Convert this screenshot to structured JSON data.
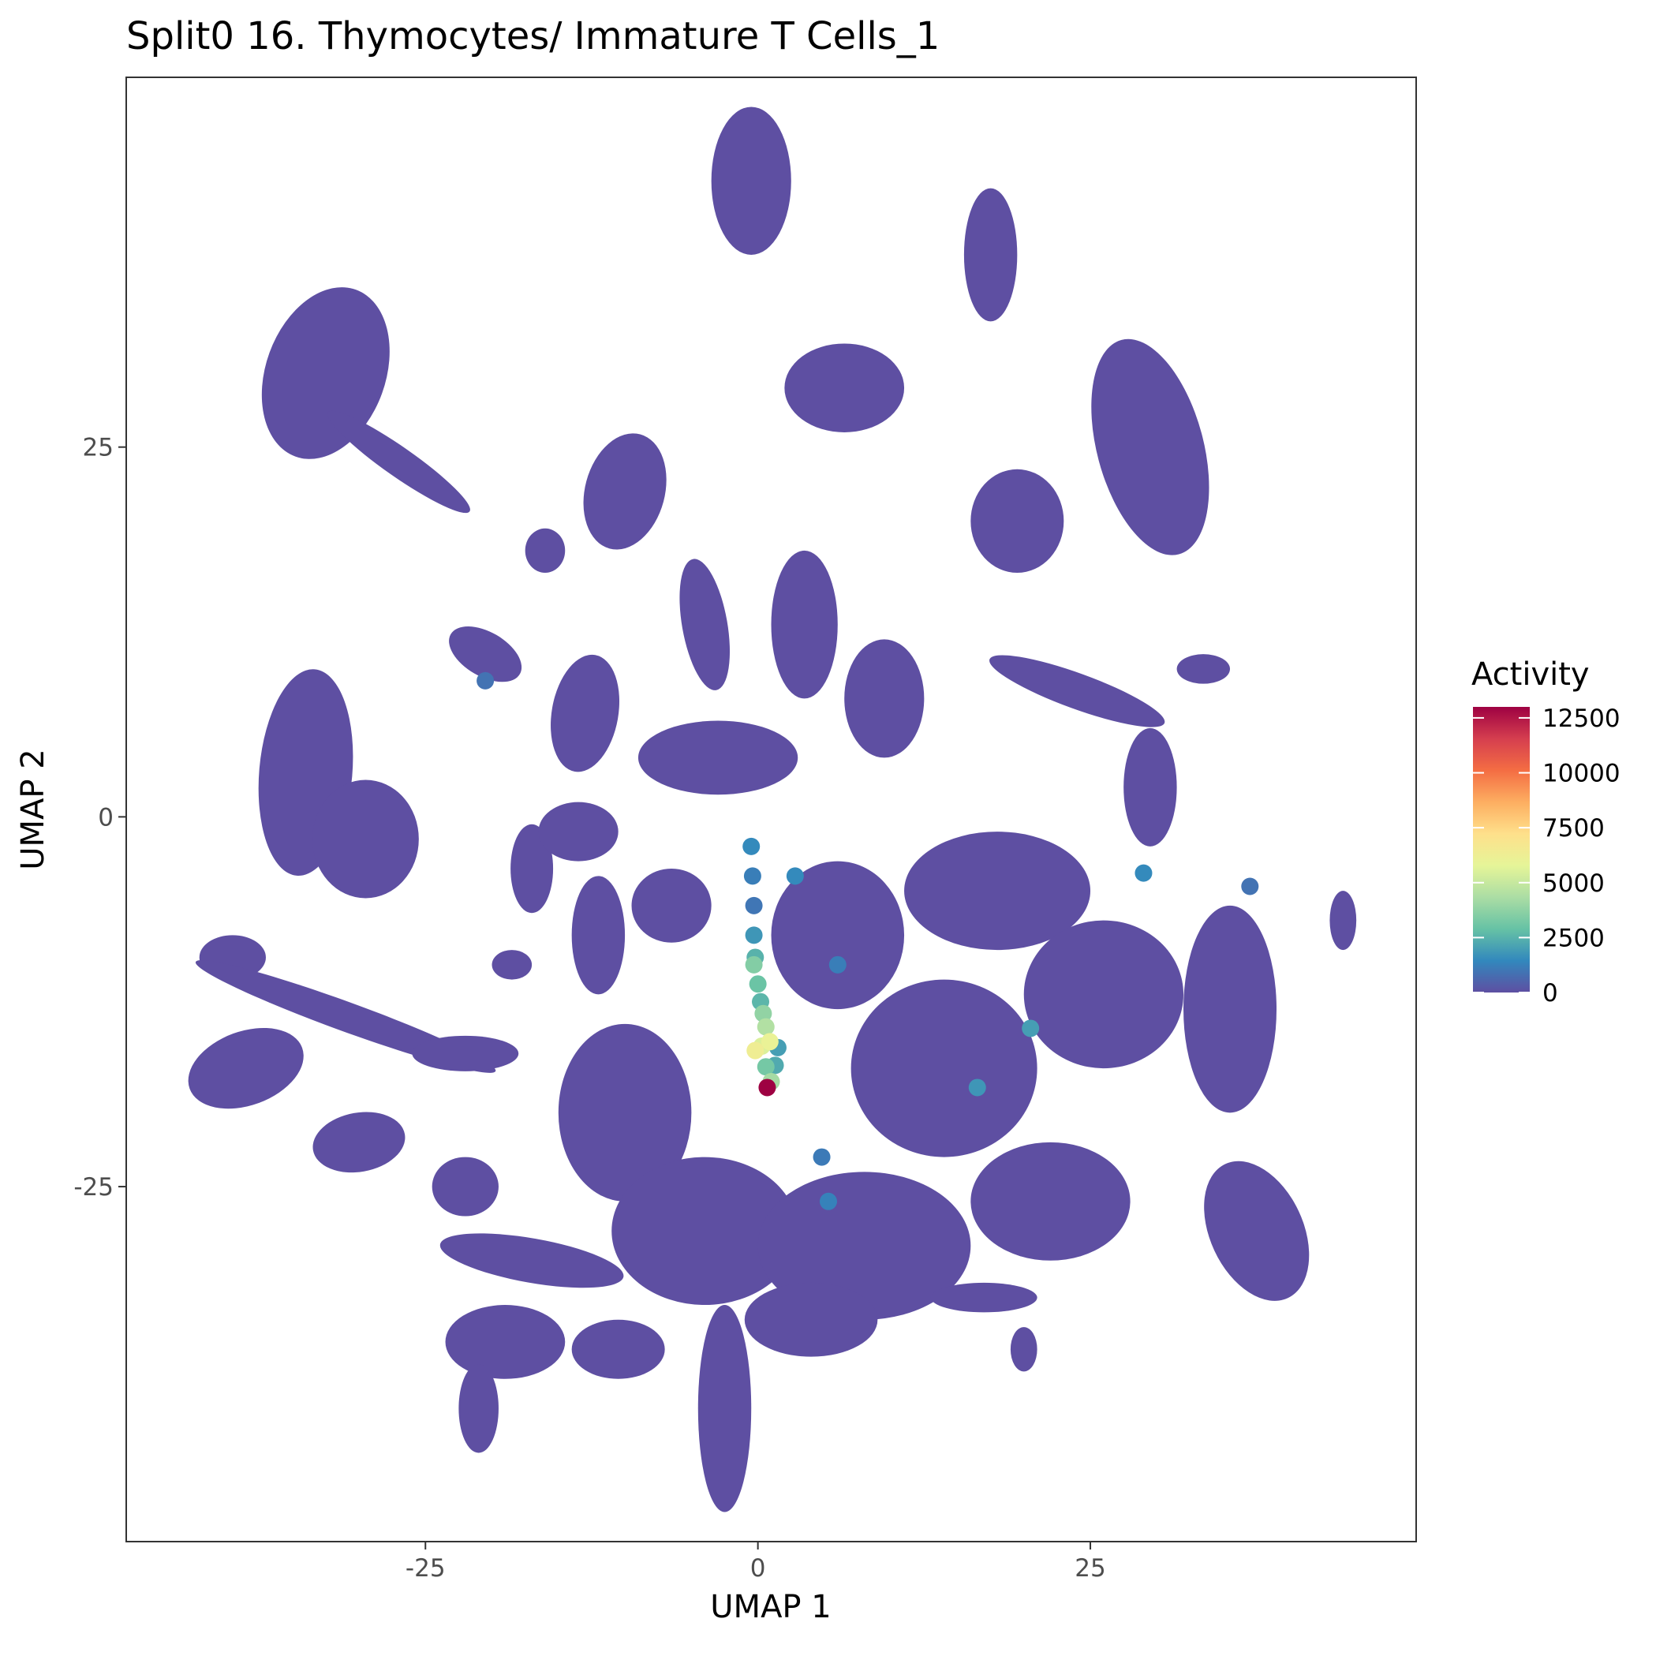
{
  "chart_data": {
    "type": "scatter",
    "title": "Split0 16. Thymocytes/ Immature T Cells_1",
    "xlabel": "UMAP 1",
    "ylabel": "UMAP 2",
    "xlim": [
      -47.5,
      49.5
    ],
    "ylim": [
      -49,
      50
    ],
    "x_ticks": [
      -25,
      0,
      25
    ],
    "x_tick_labels": [
      "-25",
      "0",
      "25"
    ],
    "y_ticks": [
      -25,
      0,
      25
    ],
    "y_tick_labels": [
      "-25",
      "0",
      "25"
    ],
    "grid": false,
    "legend": {
      "title": "Activity",
      "placement": "right",
      "range": [
        0,
        13000
      ],
      "ticks": [
        0,
        2500,
        5000,
        7500,
        10000,
        12500
      ],
      "tick_labels": [
        "0",
        "2500",
        "5000",
        "7500",
        "10000",
        "12500"
      ],
      "colormap": "Spectral (reversed)",
      "colors": [
        "#5E4FA2",
        "#3288BD",
        "#66C2A5",
        "#ABDDA4",
        "#E6F598",
        "#FEE08B",
        "#FDAE61",
        "#F46D43",
        "#D53E4F",
        "#9E0142"
      ]
    },
    "base_color": "#5E4FA2",
    "clusters": [
      {
        "cx": -32.5,
        "cy": 30,
        "rx": 4.5,
        "ry": 6,
        "angle": -20,
        "value": 0
      },
      {
        "cx": -27,
        "cy": 24,
        "rx": 6.5,
        "ry": 1,
        "angle": -35,
        "value": 0
      },
      {
        "cx": -0.5,
        "cy": 43,
        "rx": 3,
        "ry": 5,
        "angle": 0,
        "value": 0
      },
      {
        "cx": 17.5,
        "cy": 38,
        "rx": 2,
        "ry": 4.5,
        "angle": 0,
        "value": 0
      },
      {
        "cx": 6.5,
        "cy": 29,
        "rx": 4.5,
        "ry": 3,
        "angle": 0,
        "value": 0
      },
      {
        "cx": 29.5,
        "cy": 25,
        "rx": 4,
        "ry": 7.5,
        "angle": 15,
        "value": 0
      },
      {
        "cx": -10,
        "cy": 22,
        "rx": 3,
        "ry": 4,
        "angle": -15,
        "value": 0
      },
      {
        "cx": 19.5,
        "cy": 20,
        "rx": 3.5,
        "ry": 3.5,
        "angle": 0,
        "value": 0
      },
      {
        "cx": -16,
        "cy": 18,
        "rx": 1.5,
        "ry": 1.5,
        "angle": 0,
        "value": 0
      },
      {
        "cx": -20.5,
        "cy": 11,
        "rx": 3,
        "ry": 1.5,
        "angle": -30,
        "value": 0
      },
      {
        "cx": -13,
        "cy": 7,
        "rx": 2.5,
        "ry": 4,
        "angle": -10,
        "value": 0
      },
      {
        "cx": -4,
        "cy": 13,
        "rx": 1.7,
        "ry": 4.5,
        "angle": 10,
        "value": 0
      },
      {
        "cx": -34,
        "cy": 3,
        "rx": 3.5,
        "ry": 7,
        "angle": -5,
        "value": 0
      },
      {
        "cx": -29.5,
        "cy": -1.5,
        "rx": 4,
        "ry": 4,
        "angle": 0,
        "value": 0
      },
      {
        "cx": -39.5,
        "cy": -9.5,
        "rx": 2.5,
        "ry": 1.5,
        "angle": 0,
        "value": 0
      },
      {
        "cx": -31,
        "cy": -13.5,
        "rx": 12,
        "ry": 1,
        "angle": -20,
        "value": 0
      },
      {
        "cx": -38.5,
        "cy": -17,
        "rx": 4.5,
        "ry": 2.5,
        "angle": 20,
        "value": 0
      },
      {
        "cx": -22,
        "cy": -16,
        "rx": 4,
        "ry": 1.2,
        "angle": 0,
        "value": 0
      },
      {
        "cx": -30,
        "cy": -22,
        "rx": 3.5,
        "ry": 2,
        "angle": 10,
        "value": 0
      },
      {
        "cx": -17,
        "cy": -3.5,
        "rx": 1.6,
        "ry": 3,
        "angle": 0,
        "value": 0
      },
      {
        "cx": -18.5,
        "cy": -10,
        "rx": 1.5,
        "ry": 1,
        "angle": 0,
        "value": 0
      },
      {
        "cx": -13.5,
        "cy": -1,
        "rx": 3,
        "ry": 2,
        "angle": 0,
        "value": 0
      },
      {
        "cx": -3,
        "cy": 4,
        "rx": 6,
        "ry": 2.5,
        "angle": 0,
        "value": 0
      },
      {
        "cx": 9.5,
        "cy": 8,
        "rx": 3,
        "ry": 4,
        "angle": 0,
        "value": 0
      },
      {
        "cx": 3.5,
        "cy": 13,
        "rx": 2.5,
        "ry": 5,
        "angle": 0,
        "value": 0
      },
      {
        "cx": 24,
        "cy": 8.5,
        "rx": 7,
        "ry": 1.2,
        "angle": -20,
        "value": 0
      },
      {
        "cx": 33.5,
        "cy": 10,
        "rx": 2,
        "ry": 1,
        "angle": 0,
        "value": 0
      },
      {
        "cx": 29.5,
        "cy": 2,
        "rx": 2,
        "ry": 4,
        "angle": 0,
        "value": 0
      },
      {
        "cx": 44,
        "cy": -7,
        "rx": 1,
        "ry": 2,
        "angle": 0,
        "value": 0
      },
      {
        "cx": -6.5,
        "cy": -6,
        "rx": 3,
        "ry": 2.5,
        "angle": 0,
        "value": 0
      },
      {
        "cx": -12,
        "cy": -8,
        "rx": 2,
        "ry": 4,
        "angle": 0,
        "value": 0
      },
      {
        "cx": 6,
        "cy": -8,
        "rx": 5,
        "ry": 5,
        "angle": 0,
        "value": 0
      },
      {
        "cx": 18,
        "cy": -5,
        "rx": 7,
        "ry": 4,
        "angle": 0,
        "value": 0
      },
      {
        "cx": 35.5,
        "cy": -13,
        "rx": 3.5,
        "ry": 7,
        "angle": 0,
        "value": 0
      },
      {
        "cx": 26,
        "cy": -12,
        "rx": 6,
        "ry": 5,
        "angle": 0,
        "value": 0
      },
      {
        "cx": 14,
        "cy": -17,
        "rx": 7,
        "ry": 6,
        "angle": 0,
        "value": 0
      },
      {
        "cx": -10,
        "cy": -20,
        "rx": 5,
        "ry": 6,
        "angle": 0,
        "value": 0
      },
      {
        "cx": -4,
        "cy": -28,
        "rx": 7,
        "ry": 5,
        "angle": 0,
        "value": 0
      },
      {
        "cx": 8,
        "cy": -29,
        "rx": 8,
        "ry": 5,
        "angle": 0,
        "value": 0
      },
      {
        "cx": 22,
        "cy": -26,
        "rx": 6,
        "ry": 4,
        "angle": 0,
        "value": 0
      },
      {
        "cx": 37.5,
        "cy": -28,
        "rx": 3.5,
        "ry": 5,
        "angle": 25,
        "value": 0
      },
      {
        "cx": -22,
        "cy": -25,
        "rx": 2.5,
        "ry": 2,
        "angle": 0,
        "value": 0
      },
      {
        "cx": -17,
        "cy": -30,
        "rx": 7,
        "ry": 1.5,
        "angle": -10,
        "value": 0
      },
      {
        "cx": -19,
        "cy": -35.5,
        "rx": 4.5,
        "ry": 2.5,
        "angle": 0,
        "value": 0
      },
      {
        "cx": -10.5,
        "cy": -36,
        "rx": 3.5,
        "ry": 2,
        "angle": 0,
        "value": 0
      },
      {
        "cx": -2.5,
        "cy": -40,
        "rx": 2,
        "ry": 7,
        "angle": 0,
        "value": 0
      },
      {
        "cx": 4,
        "cy": -34,
        "rx": 5,
        "ry": 2.5,
        "angle": 0,
        "value": 0
      },
      {
        "cx": 20,
        "cy": -36,
        "rx": 1,
        "ry": 1.5,
        "angle": 0,
        "value": 0
      },
      {
        "cx": 17,
        "cy": -32.5,
        "rx": 4,
        "ry": 1,
        "angle": 0,
        "value": 0
      },
      {
        "cx": -21,
        "cy": -40,
        "rx": 1.5,
        "ry": 3,
        "angle": 0,
        "value": 0
      }
    ],
    "highlight_points": [
      {
        "x": -0.5,
        "y": -2,
        "value": 1500
      },
      {
        "x": -0.4,
        "y": -4,
        "value": 1200
      },
      {
        "x": -0.3,
        "y": -6,
        "value": 1000
      },
      {
        "x": -0.3,
        "y": -8,
        "value": 1800
      },
      {
        "x": -0.2,
        "y": -9.5,
        "value": 2500
      },
      {
        "x": -0.3,
        "y": -10,
        "value": 3500
      },
      {
        "x": 0,
        "y": -11.3,
        "value": 3000
      },
      {
        "x": 0.2,
        "y": -12.5,
        "value": 2600
      },
      {
        "x": 0.4,
        "y": -13.3,
        "value": 3800
      },
      {
        "x": 0.6,
        "y": -14.2,
        "value": 4500
      },
      {
        "x": -0.2,
        "y": -15.8,
        "value": 6300
      },
      {
        "x": 0.3,
        "y": -15.5,
        "value": 5500
      },
      {
        "x": 0.9,
        "y": -15.2,
        "value": 6000
      },
      {
        "x": 1.5,
        "y": -15.6,
        "value": 2000
      },
      {
        "x": 1.3,
        "y": -16.8,
        "value": 2300
      },
      {
        "x": 0.6,
        "y": -16.9,
        "value": 3200
      },
      {
        "x": 1.0,
        "y": -17.9,
        "value": 4200
      },
      {
        "x": 0.7,
        "y": -18.3,
        "value": 13000
      },
      {
        "x": 2.8,
        "y": -4,
        "value": 1500
      },
      {
        "x": 6,
        "y": -10,
        "value": 1200
      },
      {
        "x": 20.5,
        "y": -14.3,
        "value": 2000
      },
      {
        "x": 16.5,
        "y": -18.3,
        "value": 1800
      },
      {
        "x": 29,
        "y": -3.8,
        "value": 1500
      },
      {
        "x": 5.3,
        "y": -26,
        "value": 1300
      },
      {
        "x": 4.8,
        "y": -23,
        "value": 1100
      },
      {
        "x": 37,
        "y": -4.7,
        "value": 900
      },
      {
        "x": -20.5,
        "y": 9.2,
        "value": 900
      }
    ]
  }
}
